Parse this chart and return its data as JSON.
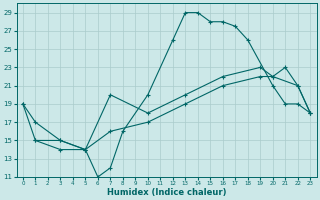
{
  "xlabel": "Humidex (Indice chaleur)",
  "bg_color": "#cce8e8",
  "grid_color": "#aacccc",
  "line_color": "#006666",
  "xlim": [
    -0.5,
    23.5
  ],
  "ylim": [
    11,
    30
  ],
  "xticks": [
    0,
    1,
    2,
    3,
    4,
    5,
    6,
    7,
    8,
    9,
    10,
    11,
    12,
    13,
    14,
    15,
    16,
    17,
    18,
    19,
    20,
    21,
    22,
    23
  ],
  "yticks": [
    11,
    13,
    15,
    17,
    19,
    21,
    23,
    25,
    27,
    29
  ],
  "line1_x": [
    0,
    1,
    3,
    5,
    6,
    7,
    8,
    10,
    12,
    13,
    14,
    15,
    16,
    17,
    18,
    20,
    21,
    22,
    23
  ],
  "line1_y": [
    19,
    17,
    15,
    14,
    11,
    12,
    16,
    20,
    26,
    29,
    29,
    28,
    28,
    27.5,
    26,
    21,
    19,
    19,
    18
  ],
  "line2_x": [
    1,
    3,
    5,
    7,
    10,
    13,
    16,
    19,
    20,
    21,
    22,
    23
  ],
  "line2_y": [
    15,
    14,
    14,
    20,
    18,
    20,
    22,
    23,
    22,
    23,
    21,
    18
  ],
  "line3_x": [
    0,
    1,
    3,
    5,
    7,
    10,
    13,
    16,
    19,
    20,
    22,
    23
  ],
  "line3_y": [
    19,
    15,
    15,
    14,
    16,
    17,
    19,
    21,
    22,
    22,
    21,
    18
  ]
}
